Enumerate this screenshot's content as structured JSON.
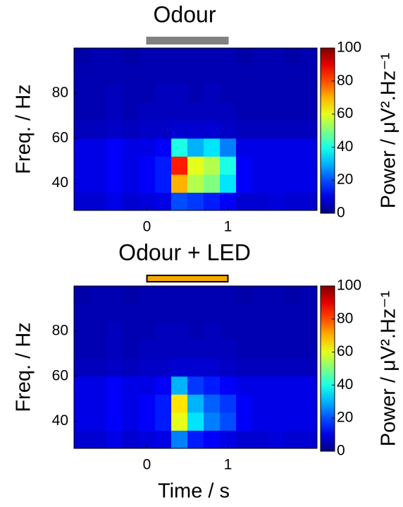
{
  "chart_data": [
    {
      "type": "heatmap",
      "title": "Odour",
      "ylabel": "Freq. / Hz",
      "colorbar_label": "Power / μV².Hz⁻¹",
      "colormap": "jet",
      "clim": [
        0,
        100
      ],
      "cticks": [
        0,
        20,
        40,
        60,
        80,
        100
      ],
      "stimulus": [
        0,
        1
      ],
      "stimulus_color": "#808080",
      "stimulus_edge": "#808080",
      "xlim": [
        -0.9,
        2.1
      ],
      "xticks": [
        0,
        1
      ],
      "ylim": [
        28,
        100
      ],
      "yticks": [
        40,
        60,
        80
      ],
      "xbins": [
        -0.9,
        -0.7,
        -0.5,
        -0.3,
        -0.1,
        0.1,
        0.3,
        0.5,
        0.7,
        0.9,
        1.1,
        1.3,
        1.5,
        1.7,
        1.9,
        2.1
      ],
      "ybins": [
        28,
        36,
        44,
        52,
        60,
        68,
        76,
        84,
        92,
        100
      ],
      "values": [
        [
          8,
          8,
          10,
          8,
          9,
          10,
          20,
          18,
          15,
          12,
          8,
          8,
          9,
          8,
          8
        ],
        [
          10,
          10,
          12,
          10,
          12,
          15,
          70,
          55,
          50,
          35,
          12,
          10,
          10,
          10,
          10
        ],
        [
          10,
          10,
          12,
          10,
          12,
          15,
          85,
          60,
          55,
          40,
          12,
          10,
          10,
          10,
          10
        ],
        [
          10,
          10,
          12,
          10,
          10,
          12,
          40,
          30,
          35,
          25,
          10,
          10,
          10,
          10,
          10
        ],
        [
          6,
          6,
          7,
          6,
          7,
          7,
          8,
          8,
          8,
          7,
          6,
          6,
          6,
          6,
          6
        ],
        [
          5,
          5,
          6,
          5,
          6,
          6,
          6,
          6,
          6,
          6,
          5,
          5,
          5,
          5,
          5
        ],
        [
          5,
          5,
          6,
          5,
          5,
          6,
          6,
          5,
          6,
          5,
          5,
          5,
          5,
          5,
          5
        ],
        [
          5,
          5,
          5,
          5,
          5,
          5,
          5,
          5,
          5,
          5,
          5,
          5,
          5,
          5,
          5
        ],
        [
          4,
          5,
          5,
          4,
          5,
          5,
          5,
          5,
          5,
          5,
          4,
          5,
          5,
          4,
          5
        ]
      ]
    },
    {
      "type": "heatmap",
      "title": "Odour + LED",
      "ylabel": "Freq. / Hz",
      "xlabel": "Time / s",
      "colorbar_label": "Power / μV².Hz⁻¹",
      "colormap": "jet",
      "clim": [
        0,
        100
      ],
      "cticks": [
        0,
        20,
        40,
        60,
        80,
        100
      ],
      "stimulus": [
        0,
        1
      ],
      "stimulus_color": "#f5a800",
      "stimulus_edge": "#000000",
      "xlim": [
        -0.9,
        2.1
      ],
      "xticks": [
        0,
        1
      ],
      "ylim": [
        28,
        100
      ],
      "yticks": [
        40,
        60,
        80
      ],
      "xbins": [
        -0.9,
        -0.7,
        -0.5,
        -0.3,
        -0.1,
        0.1,
        0.3,
        0.5,
        0.7,
        0.9,
        1.1,
        1.3,
        1.5,
        1.7,
        1.9,
        2.1
      ],
      "ybins": [
        28,
        36,
        44,
        52,
        60,
        68,
        76,
        84,
        92,
        100
      ],
      "values": [
        [
          8,
          8,
          10,
          8,
          9,
          10,
          25,
          15,
          12,
          10,
          8,
          8,
          9,
          8,
          8
        ],
        [
          10,
          10,
          12,
          10,
          12,
          15,
          60,
          35,
          25,
          20,
          12,
          10,
          10,
          10,
          10
        ],
        [
          10,
          10,
          12,
          10,
          12,
          15,
          65,
          30,
          22,
          18,
          12,
          10,
          10,
          10,
          10
        ],
        [
          10,
          10,
          12,
          10,
          10,
          12,
          30,
          18,
          15,
          12,
          10,
          10,
          10,
          10,
          10
        ],
        [
          6,
          6,
          7,
          6,
          7,
          7,
          8,
          8,
          8,
          7,
          6,
          6,
          6,
          6,
          6
        ],
        [
          5,
          5,
          6,
          5,
          6,
          6,
          6,
          6,
          6,
          6,
          5,
          5,
          5,
          5,
          5
        ],
        [
          5,
          5,
          6,
          5,
          5,
          6,
          6,
          5,
          6,
          5,
          5,
          5,
          5,
          5,
          5
        ],
        [
          5,
          5,
          5,
          5,
          5,
          5,
          5,
          5,
          5,
          5,
          5,
          5,
          5,
          5,
          5
        ],
        [
          4,
          5,
          5,
          4,
          5,
          5,
          5,
          5,
          5,
          5,
          4,
          5,
          5,
          4,
          5
        ]
      ]
    }
  ]
}
